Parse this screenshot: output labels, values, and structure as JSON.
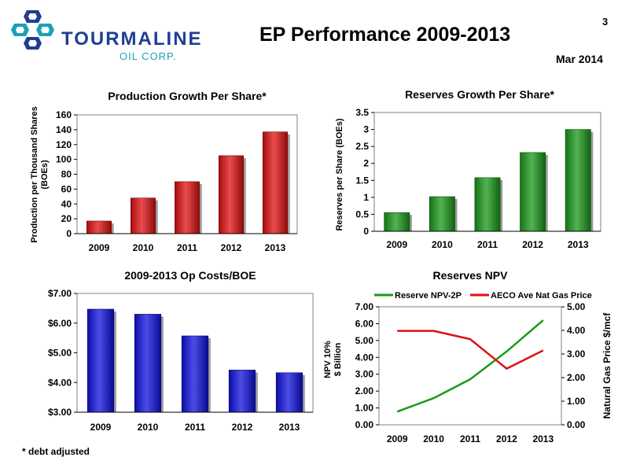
{
  "header": {
    "company_name": "TOURMALINE",
    "company_sub": "OIL CORP.",
    "title": "EP Performance 2009-2013",
    "page_number": "3",
    "date": "Mar 2014"
  },
  "footnote": "* debt adjusted",
  "colors": {
    "logo_blue": "#1f3e93",
    "logo_teal": "#1aa1b8"
  },
  "chart_data": [
    {
      "id": "production",
      "type": "bar",
      "title": "Production Growth Per Share*",
      "ylabel": [
        "Production per Thousand Shares",
        "(BOEs)"
      ],
      "xlabel": "",
      "categories": [
        "2009",
        "2010",
        "2011",
        "2012",
        "2013"
      ],
      "values": [
        17,
        48,
        70,
        105,
        137
      ],
      "ylim": [
        0,
        160
      ],
      "yticks": [
        0,
        20,
        40,
        60,
        80,
        100,
        120,
        140,
        160
      ],
      "ytick_labels": [
        "0",
        "20",
        "40",
        "60",
        "80",
        "100",
        "120",
        "140",
        "160"
      ],
      "color": "#e01010",
      "grid": false
    },
    {
      "id": "reserves",
      "type": "bar",
      "title": "Reserves Growth Per Share*",
      "ylabel": [
        "Reserves per Share (BOEs)"
      ],
      "xlabel": "",
      "categories": [
        "2009",
        "2010",
        "2011",
        "2012",
        "2013"
      ],
      "values": [
        0.55,
        1.02,
        1.58,
        2.32,
        3.0
      ],
      "ylim": [
        0,
        3.5
      ],
      "yticks": [
        0,
        0.5,
        1,
        1.5,
        2,
        2.5,
        3,
        3.5
      ],
      "ytick_labels": [
        "0",
        "0.5",
        "1",
        "1.5",
        "2",
        "2.5",
        "3",
        "3.5"
      ],
      "color": "#1a9a1a",
      "grid": false
    },
    {
      "id": "opcosts",
      "type": "bar",
      "title": "2009-2013 Op Costs/BOE",
      "ylabel": [],
      "xlabel": "",
      "categories": [
        "2009",
        "2010",
        "2011",
        "2012",
        "2013"
      ],
      "values": [
        6.47,
        6.3,
        5.57,
        4.42,
        4.33
      ],
      "ylim": [
        3,
        7
      ],
      "yticks": [
        3,
        4,
        5,
        6,
        7
      ],
      "ytick_labels": [
        "$3.00",
        "$4.00",
        "$5.00",
        "$6.00",
        "$7.00"
      ],
      "color": "#1010e0",
      "grid": false
    },
    {
      "id": "npv",
      "type": "line",
      "title": "Reserves NPV",
      "ylabel": [
        "NPV 10%",
        "$ Billion"
      ],
      "y2label": "Natural Gas Price $/mcf",
      "xlabel": "",
      "categories": [
        "2009",
        "2010",
        "2011",
        "2012",
        "2013"
      ],
      "ylim": [
        0,
        7
      ],
      "yticks": [
        0,
        1,
        2,
        3,
        4,
        5,
        6,
        7
      ],
      "ytick_labels": [
        "0.00",
        "1.00",
        "2.00",
        "3.00",
        "4.00",
        "5.00",
        "6.00",
        "7.00"
      ],
      "y2lim": [
        0,
        5
      ],
      "y2ticks": [
        0,
        1,
        2,
        3,
        4,
        5
      ],
      "y2tick_labels": [
        "0.00",
        "1.00",
        "2.00",
        "3.00",
        "4.00",
        "5.00"
      ],
      "legend_position": "top",
      "grid": false,
      "series": [
        {
          "name": "Reserve NPV-2P",
          "axis": "left",
          "color": "#1a9a1a",
          "values": [
            0.78,
            1.58,
            2.7,
            4.35,
            6.2
          ]
        },
        {
          "name": "AECO Ave Nat Gas Price",
          "axis": "right",
          "color": "#e01010",
          "values": [
            3.98,
            3.98,
            3.63,
            2.38,
            3.15
          ]
        }
      ]
    }
  ]
}
